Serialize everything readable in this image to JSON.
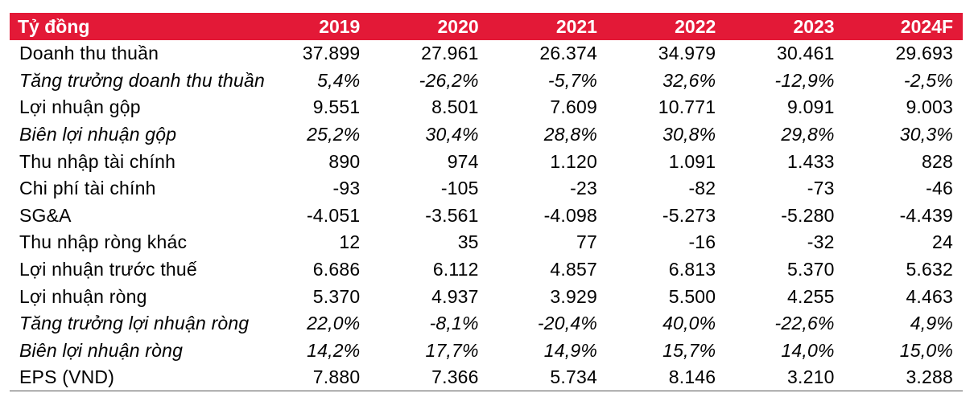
{
  "header": {
    "label": "Tỷ đồng",
    "years": [
      "2019",
      "2020",
      "2021",
      "2022",
      "2023",
      "2024F"
    ]
  },
  "rows": [
    {
      "label": "Doanh thu thuần",
      "italic": false,
      "values": [
        "37.899",
        "27.961",
        "26.374",
        "34.979",
        "30.461",
        "29.693"
      ]
    },
    {
      "label": "Tăng trưởng doanh thu thuần",
      "italic": true,
      "values": [
        "5,4%",
        "-26,2%",
        "-5,7%",
        "32,6%",
        "-12,9%",
        "-2,5%"
      ]
    },
    {
      "label": "Lợi nhuận gộp",
      "italic": false,
      "values": [
        "9.551",
        "8.501",
        "7.609",
        "10.771",
        "9.091",
        "9.003"
      ]
    },
    {
      "label": "Biên lợi nhuận gộp",
      "italic": true,
      "values": [
        "25,2%",
        "30,4%",
        "28,8%",
        "30,8%",
        "29,8%",
        "30,3%"
      ]
    },
    {
      "label": "Thu nhập tài chính",
      "italic": false,
      "values": [
        "890",
        "974",
        "1.120",
        "1.091",
        "1.433",
        "828"
      ]
    },
    {
      "label": "Chi phí tài chính",
      "italic": false,
      "values": [
        "-93",
        "-105",
        "-23",
        "-82",
        "-73",
        "-46"
      ]
    },
    {
      "label": "SG&A",
      "italic": false,
      "values": [
        "-4.051",
        "-3.561",
        "-4.098",
        "-5.273",
        "-5.280",
        "-4.439"
      ]
    },
    {
      "label": "Thu nhập ròng khác",
      "italic": false,
      "values": [
        "12",
        "35",
        "77",
        "-16",
        "-32",
        "24"
      ]
    },
    {
      "label": "Lợi nhuận trước thuế",
      "italic": false,
      "values": [
        "6.686",
        "6.112",
        "4.857",
        "6.813",
        "5.370",
        "5.632"
      ]
    },
    {
      "label": "Lợi nhuận ròng",
      "italic": false,
      "values": [
        "5.370",
        "4.937",
        "3.929",
        "5.500",
        "4.255",
        "4.463"
      ]
    },
    {
      "label": "Tăng trưởng lợi nhuận ròng",
      "italic": true,
      "values": [
        "22,0%",
        "-8,1%",
        "-20,4%",
        "40,0%",
        "-22,6%",
        "4,9%"
      ]
    },
    {
      "label": "Biên lợi nhuận ròng",
      "italic": true,
      "values": [
        "14,2%",
        "17,7%",
        "14,9%",
        "15,7%",
        "14,0%",
        "15,0%"
      ]
    },
    {
      "label": "EPS (VND)",
      "italic": false,
      "values": [
        "7.880",
        "7.366",
        "5.734",
        "8.146",
        "3.210",
        "3.288"
      ]
    }
  ],
  "colors": {
    "header_bg": "#e31937",
    "header_text": "#ffffff",
    "body_text": "#000000"
  }
}
